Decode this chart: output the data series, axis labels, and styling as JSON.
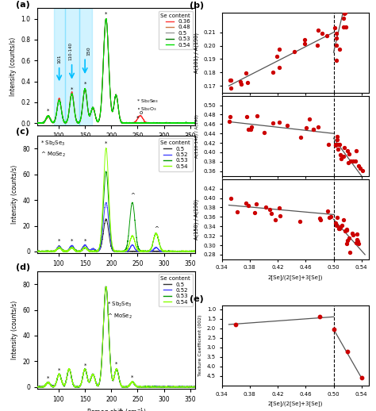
{
  "colors_a": [
    "#ff3333",
    "#cc7744",
    "#999999",
    "#007700",
    "#00dd00"
  ],
  "se_a": [
    0.36,
    0.48,
    0.5,
    0.53,
    0.54
  ],
  "colors_cd": [
    "#333333",
    "#4444ff",
    "#009900",
    "#88ff00"
  ],
  "se_cd": [
    0.5,
    0.52,
    0.53,
    0.54
  ],
  "dot_color": "#cc0000",
  "line_color": "#555555"
}
